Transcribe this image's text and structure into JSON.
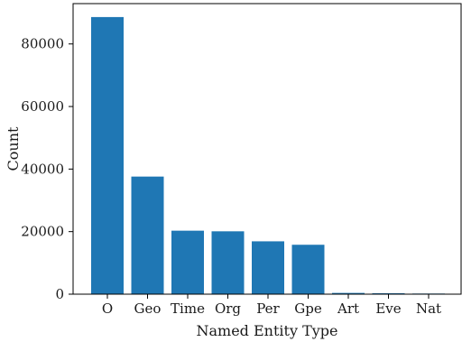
{
  "chart_data": {
    "type": "bar",
    "categories": [
      "O",
      "Geo",
      "Time",
      "Org",
      "Per",
      "Gpe",
      "Art",
      "Eve",
      "Nat"
    ],
    "values": [
      88600,
      37600,
      20300,
      20100,
      16900,
      15800,
      400,
      300,
      200
    ],
    "xlabel": "Named Entity Type",
    "ylabel": "Count",
    "ylim": [
      0,
      92900
    ],
    "yticks": [
      0,
      20000,
      40000,
      60000,
      80000
    ],
    "ytick_labels": [
      "0",
      "20000",
      "40000",
      "60000",
      "80000"
    ],
    "grid": false,
    "bar_color": "#1f77b4"
  }
}
